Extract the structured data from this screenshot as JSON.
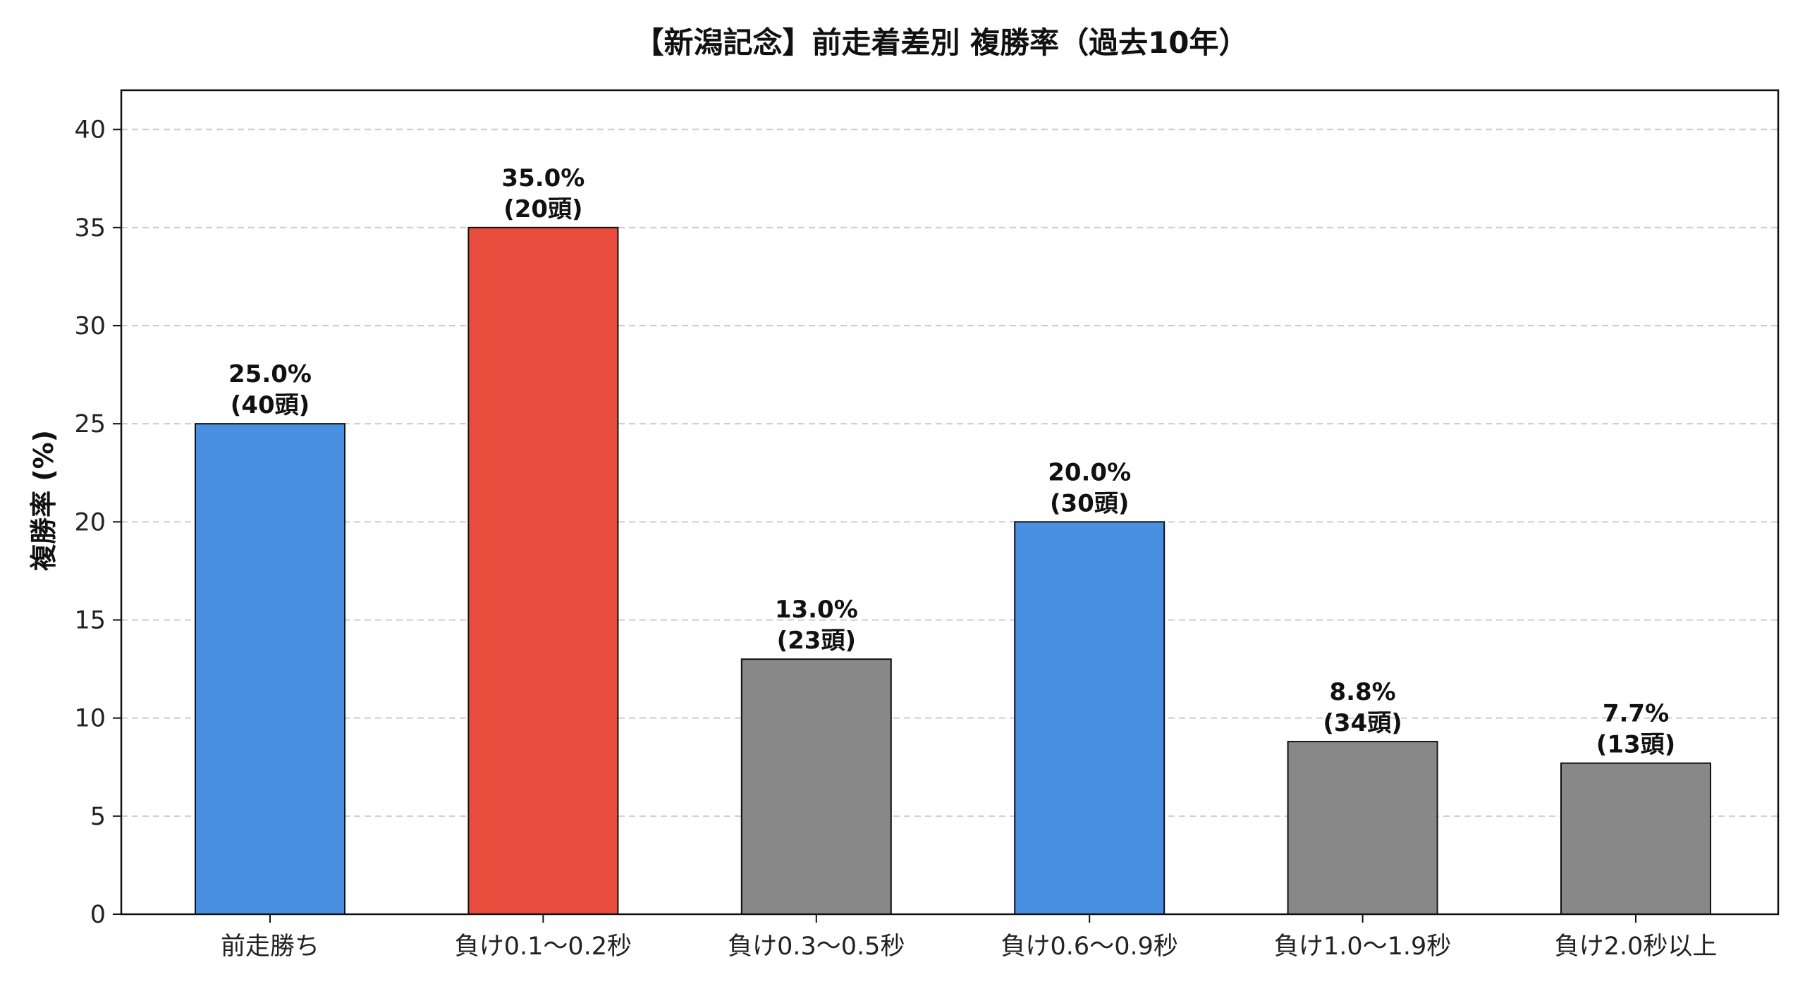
{
  "chart_data": {
    "type": "bar",
    "title": "【新潟記念】前走着差別 複勝率（過去10年）",
    "xlabel": "",
    "ylabel": "複勝率 (%)",
    "ylim": [
      0,
      42
    ],
    "yticks": [
      0,
      5,
      10,
      15,
      20,
      25,
      30,
      35,
      40
    ],
    "grid": true,
    "categories": [
      "前走勝ち",
      "負け0.1～0.2秒",
      "負け0.3～0.5秒",
      "負け0.6～0.9秒",
      "負け1.0～1.9秒",
      "負け2.0秒以上"
    ],
    "values": [
      25.0,
      35.0,
      13.0,
      20.0,
      8.8,
      7.7
    ],
    "labels": [
      {
        "pct": "25.0%",
        "count": "(40頭)"
      },
      {
        "pct": "35.0%",
        "count": "(20頭)"
      },
      {
        "pct": "13.0%",
        "count": "(23頭)"
      },
      {
        "pct": "20.0%",
        "count": "(30頭)"
      },
      {
        "pct": "8.8%",
        "count": "(34頭)"
      },
      {
        "pct": "7.7%",
        "count": "(13頭)"
      }
    ],
    "colors": [
      "#4a90e2",
      "#e74c3c",
      "#888888",
      "#4a90e2",
      "#888888",
      "#888888"
    ],
    "edge_color": "#111111",
    "grid_color": "#cccccc"
  }
}
